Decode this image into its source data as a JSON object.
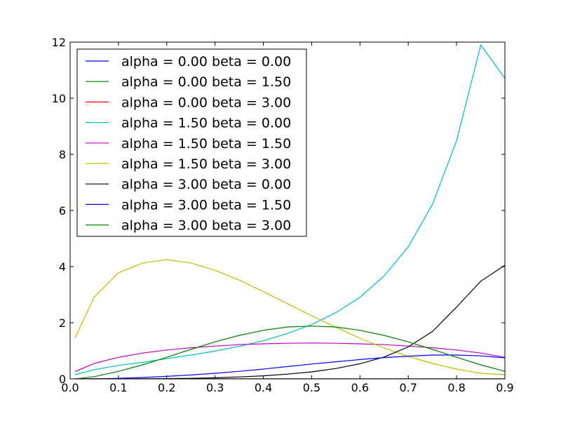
{
  "chart_data": {
    "type": "line",
    "title": "",
    "xlabel": "",
    "ylabel": "",
    "xlim": [
      0.0,
      0.9
    ],
    "ylim": [
      0,
      12
    ],
    "x_ticks": [
      "0.0",
      "0.1",
      "0.2",
      "0.3",
      "0.4",
      "0.5",
      "0.6",
      "0.7",
      "0.8",
      "0.9"
    ],
    "y_ticks": [
      "0",
      "2",
      "4",
      "6",
      "8",
      "10",
      "12"
    ],
    "legend_position": "top-left",
    "grid": false,
    "x": [
      0.01,
      0.05,
      0.1,
      0.15,
      0.2,
      0.25,
      0.3,
      0.35,
      0.4,
      0.45,
      0.5,
      0.55,
      0.6,
      0.65,
      0.7,
      0.75,
      0.8,
      0.85,
      0.9
    ],
    "series": [
      {
        "name": "alpha = 0.00 beta = 0.00",
        "color": "#0000ff",
        "values": [
          0.0,
          0.0,
          0.0,
          0.0,
          0.0,
          0.0,
          0.0,
          0.0,
          0.0,
          0.0,
          0.0,
          0.0,
          0.0,
          0.0,
          0.0,
          0.0,
          0.0,
          0.0,
          0.0
        ]
      },
      {
        "name": "alpha = 0.00 beta = 1.50",
        "color": "#008000",
        "values": [
          0.0,
          0.0,
          0.0,
          0.0,
          0.0,
          0.0,
          0.0,
          0.0,
          0.0,
          0.0,
          0.0,
          0.0,
          0.0,
          0.0,
          0.0,
          0.0,
          0.0,
          0.0,
          0.0
        ]
      },
      {
        "name": "alpha = 0.00 beta = 3.00",
        "color": "#ff0000",
        "values": [
          0.0,
          0.0,
          0.0,
          0.0,
          0.0,
          0.0,
          0.0,
          0.0,
          0.0,
          0.0,
          0.0,
          0.0,
          0.0,
          0.0,
          0.0,
          0.0,
          0.0,
          0.0,
          0.0
        ]
      },
      {
        "name": "alpha = 1.50 beta = 0.00",
        "color": "#00bfbf",
        "values": [
          0.15,
          0.33,
          0.48,
          0.59,
          0.72,
          0.85,
          0.99,
          1.16,
          1.36,
          1.62,
          1.94,
          2.36,
          2.91,
          3.67,
          4.71,
          6.22,
          8.49,
          11.9,
          10.71
        ]
      },
      {
        "name": "alpha = 1.50 beta = 1.50",
        "color": "#bf00bf",
        "values": [
          0.26,
          0.55,
          0.77,
          0.92,
          1.03,
          1.11,
          1.17,
          1.22,
          1.25,
          1.27,
          1.28,
          1.27,
          1.25,
          1.22,
          1.17,
          1.11,
          1.03,
          0.92,
          0.77
        ]
      },
      {
        "name": "alpha = 1.50 beta = 3.00",
        "color": "#bfbf00",
        "values": [
          1.46,
          2.92,
          3.78,
          4.13,
          4.25,
          4.13,
          3.87,
          3.52,
          3.11,
          2.68,
          2.25,
          1.84,
          1.45,
          1.1,
          0.8,
          0.55,
          0.35,
          0.2,
          0.15
        ]
      },
      {
        "name": "alpha = 3.00 beta = 0.00",
        "color": "#000000",
        "values": [
          0.0,
          0.0,
          0.0,
          0.0,
          0.01,
          0.02,
          0.04,
          0.07,
          0.11,
          0.17,
          0.25,
          0.37,
          0.54,
          0.78,
          1.14,
          1.69,
          2.56,
          3.48,
          4.05
        ]
      },
      {
        "name": "alpha = 3.00 beta = 1.50",
        "color": "#0000ff",
        "values": [
          0.0,
          0.0,
          0.02,
          0.05,
          0.09,
          0.14,
          0.2,
          0.27,
          0.35,
          0.44,
          0.53,
          0.61,
          0.69,
          0.76,
          0.81,
          0.85,
          0.85,
          0.82,
          0.75
        ]
      },
      {
        "name": "alpha = 3.00 beta = 3.00",
        "color": "#008000",
        "values": [
          0.0,
          0.08,
          0.27,
          0.5,
          0.77,
          1.05,
          1.32,
          1.55,
          1.73,
          1.85,
          1.88,
          1.85,
          1.73,
          1.55,
          1.32,
          1.05,
          0.77,
          0.5,
          0.27
        ]
      }
    ]
  }
}
